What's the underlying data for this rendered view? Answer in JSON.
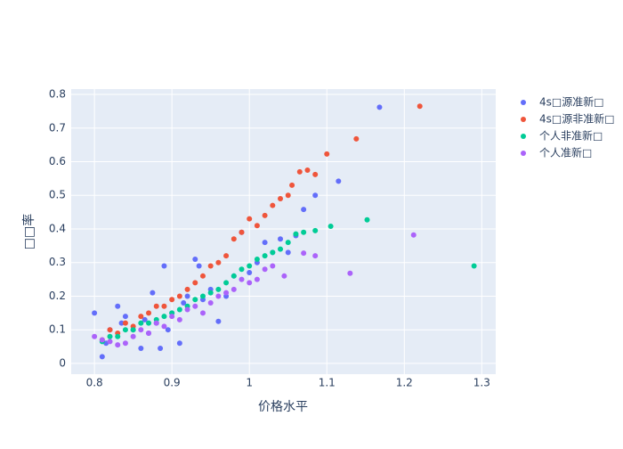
{
  "chart_data": {
    "type": "scatter",
    "x_label": "价格水平",
    "y_label": "□□率",
    "xlim": [
      0.77,
      1.318
    ],
    "ylim": [
      -0.032,
      0.816
    ],
    "xticks": [
      0.8,
      0.9,
      1,
      1.1,
      1.2,
      1.3
    ],
    "yticks": [
      0,
      0.1,
      0.2,
      0.3,
      0.4,
      0.5,
      0.6,
      0.7,
      0.8
    ],
    "grid": true,
    "legend": "right",
    "series": [
      {
        "name": "4s□源准新□",
        "color": "#636efa",
        "x": [
          0.8,
          0.81,
          0.815,
          0.82,
          0.83,
          0.835,
          0.84,
          0.85,
          0.86,
          0.865,
          0.87,
          0.875,
          0.88,
          0.885,
          0.89,
          0.895,
          0.9,
          0.91,
          0.915,
          0.92,
          0.93,
          0.935,
          0.94,
          0.95,
          0.96,
          0.97,
          0.98,
          0.99,
          1.0,
          1.01,
          1.02,
          1.03,
          1.04,
          1.05,
          1.06,
          1.07,
          1.085,
          1.115,
          1.168
        ],
        "y": [
          0.15,
          0.02,
          0.06,
          0.1,
          0.17,
          0.12,
          0.14,
          0.1,
          0.045,
          0.13,
          0.09,
          0.21,
          0.12,
          0.045,
          0.29,
          0.1,
          0.15,
          0.06,
          0.18,
          0.2,
          0.31,
          0.29,
          0.19,
          0.22,
          0.125,
          0.2,
          0.26,
          0.39,
          0.27,
          0.3,
          0.36,
          0.33,
          0.37,
          0.33,
          0.38,
          0.458,
          0.5,
          0.542,
          0.762
        ]
      },
      {
        "name": "4s□源非准新□",
        "color": "#ef553b",
        "x": [
          0.81,
          0.82,
          0.83,
          0.84,
          0.85,
          0.86,
          0.87,
          0.88,
          0.89,
          0.9,
          0.91,
          0.92,
          0.93,
          0.94,
          0.95,
          0.96,
          0.97,
          0.98,
          0.99,
          1.0,
          1.01,
          1.02,
          1.03,
          1.04,
          1.05,
          1.055,
          1.065,
          1.075,
          1.085,
          1.1,
          1.138,
          1.22
        ],
        "y": [
          0.07,
          0.1,
          0.09,
          0.12,
          0.11,
          0.14,
          0.15,
          0.17,
          0.17,
          0.19,
          0.2,
          0.22,
          0.24,
          0.26,
          0.29,
          0.3,
          0.32,
          0.37,
          0.39,
          0.43,
          0.41,
          0.44,
          0.47,
          0.49,
          0.5,
          0.53,
          0.57,
          0.575,
          0.562,
          0.623,
          0.668,
          0.765
        ]
      },
      {
        "name": "个人非准新□",
        "color": "#00cc96",
        "x": [
          0.81,
          0.82,
          0.83,
          0.84,
          0.85,
          0.86,
          0.87,
          0.88,
          0.89,
          0.9,
          0.91,
          0.92,
          0.93,
          0.94,
          0.95,
          0.96,
          0.97,
          0.98,
          0.99,
          1.0,
          1.01,
          1.02,
          1.03,
          1.04,
          1.05,
          1.06,
          1.07,
          1.085,
          1.105,
          1.152,
          1.29
        ],
        "y": [
          0.065,
          0.08,
          0.08,
          0.1,
          0.1,
          0.12,
          0.12,
          0.13,
          0.14,
          0.15,
          0.16,
          0.17,
          0.19,
          0.2,
          0.21,
          0.22,
          0.24,
          0.26,
          0.28,
          0.29,
          0.31,
          0.32,
          0.33,
          0.34,
          0.36,
          0.385,
          0.39,
          0.395,
          0.408,
          0.427,
          0.29
        ]
      },
      {
        "name": "个人准新□",
        "color": "#ab63fa",
        "x": [
          0.8,
          0.81,
          0.82,
          0.83,
          0.84,
          0.85,
          0.86,
          0.87,
          0.88,
          0.89,
          0.9,
          0.91,
          0.92,
          0.93,
          0.94,
          0.95,
          0.96,
          0.97,
          0.98,
          0.99,
          1.0,
          1.01,
          1.02,
          1.03,
          1.045,
          1.07,
          1.085,
          1.13,
          1.212
        ],
        "y": [
          0.08,
          0.07,
          0.065,
          0.055,
          0.06,
          0.08,
          0.1,
          0.09,
          0.12,
          0.11,
          0.14,
          0.13,
          0.16,
          0.17,
          0.15,
          0.18,
          0.2,
          0.21,
          0.22,
          0.25,
          0.24,
          0.25,
          0.28,
          0.29,
          0.26,
          0.328,
          0.32,
          0.268,
          0.382
        ]
      }
    ]
  }
}
